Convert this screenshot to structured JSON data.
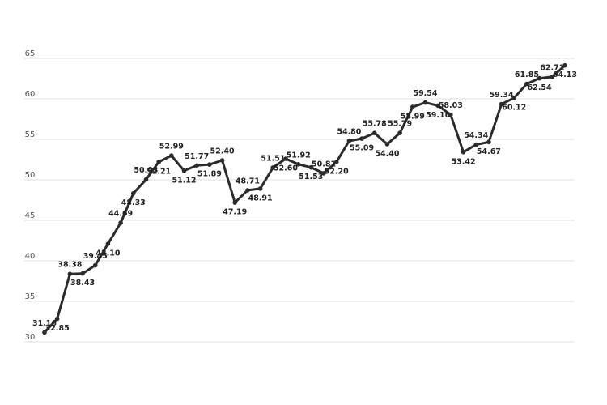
{
  "chart_data": {
    "type": "line",
    "categories": [
      null,
      null,
      null,
      null,
      null,
      null,
      null,
      null,
      null,
      null,
      null,
      null,
      null,
      null,
      null,
      null,
      null,
      null,
      null,
      null,
      null,
      null,
      null,
      null,
      null,
      null,
      null,
      null,
      null,
      null,
      null,
      null,
      null,
      null,
      null,
      null,
      null,
      null,
      null,
      null,
      null,
      null
    ],
    "series": [
      {
        "color": "#2b2b2b",
        "values": [
          31.16,
          32.85,
          38.38,
          38.43,
          39.45,
          42.1,
          44.69,
          48.33,
          50.03,
          52.21,
          52.99,
          51.12,
          51.77,
          51.89,
          52.4,
          47.19,
          48.71,
          48.91,
          51.51,
          52.6,
          51.92,
          51.53,
          50.81,
          52.2,
          54.8,
          55.09,
          55.78,
          54.4,
          55.79,
          58.99,
          59.54,
          59.16,
          58.03,
          53.42,
          54.34,
          54.67,
          59.34,
          60.12,
          61.85,
          62.54,
          62.71,
          64.13
        ],
        "value_labels": [
          "31.16",
          "32.85",
          "38.38",
          "38.43",
          "39.45",
          "42.10",
          "44.69",
          "48.33",
          "50.03",
          "52.21",
          "52.99",
          "51.12",
          "51.77",
          "51.89",
          "52.40",
          "47.19",
          "48.71",
          "48.91",
          "51.51",
          "52.60",
          "51.92",
          "51.53",
          "50.81",
          "52.20",
          "54.80",
          "55.09",
          "55.78",
          "54.40",
          "55.79",
          "58.99",
          "59.54",
          "59.16",
          "58.03",
          "53.42",
          "54.34",
          "54.67",
          "59.34",
          "60.12",
          "61.85",
          "62.54",
          "62.71",
          "64.13"
        ]
      }
    ],
    "ylim": [
      30,
      65
    ],
    "yticks": [
      30,
      35,
      40,
      45,
      50,
      55,
      60,
      65
    ],
    "grid": true
  }
}
